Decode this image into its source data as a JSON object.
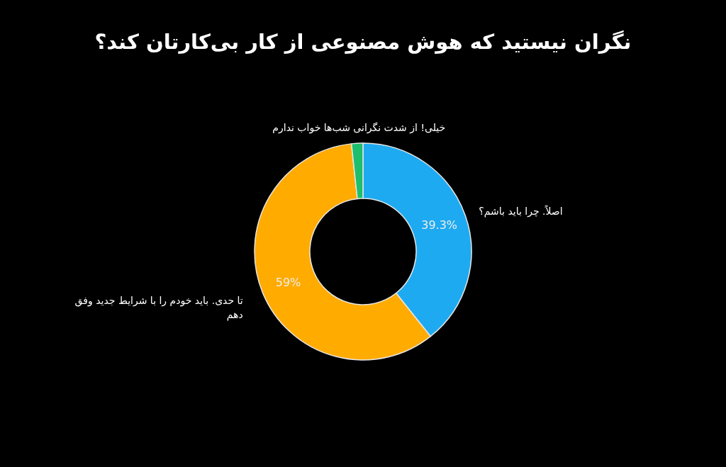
{
  "chart_data": {
    "type": "donut",
    "title": "نگران نیستید که هوش مصنوعی از کار بی‌کارتان کند؟",
    "categories": [
      "اصلاً. چرا باید باشم؟",
      "تا حدی. باید خودم را با شرایط جدید وفق دهم",
      "خیلی! از شدت نگرانی شب‌ها خواب ندارم"
    ],
    "values": [
      39.3,
      59,
      1.7
    ],
    "colors": [
      "#1eaaf1",
      "#ffab00",
      "#1dbf6c"
    ],
    "value_labels": [
      "39.3%",
      "59%",
      null
    ]
  }
}
